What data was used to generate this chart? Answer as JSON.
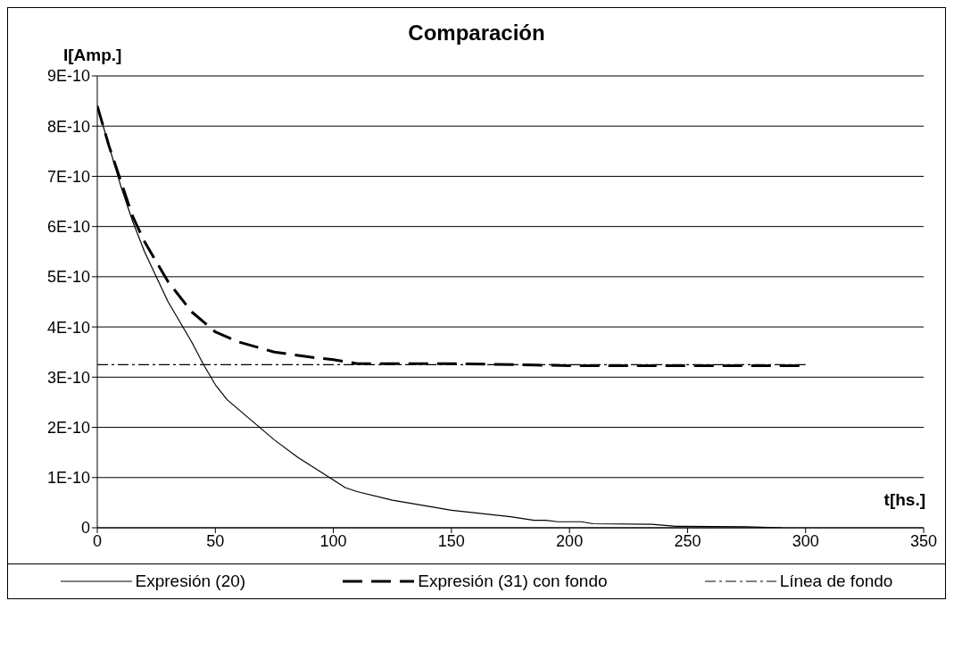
{
  "chart_data": {
    "type": "line",
    "title": "Comparación",
    "xlabel": "t[hs.]",
    "ylabel": "I[Amp.]",
    "xlim": [
      0,
      350
    ],
    "xticks": [
      0,
      50,
      100,
      150,
      200,
      250,
      300,
      350
    ],
    "ylim": [
      0,
      9e-10
    ],
    "yticks": [
      0,
      {
        "value": 1e-10,
        "label": "1E-10"
      },
      {
        "value": 2e-10,
        "label": "2E-10"
      },
      {
        "value": 3e-10,
        "label": "3E-10"
      },
      {
        "value": 4e-10,
        "label": "4E-10"
      },
      {
        "value": 5e-10,
        "label": "5E-10"
      },
      {
        "value": 6e-10,
        "label": "6E-10"
      },
      {
        "value": 7e-10,
        "label": "7E-10"
      },
      {
        "value": 8e-10,
        "label": "8E-10"
      },
      {
        "value": 9e-10,
        "label": "9E-10"
      }
    ],
    "grid": "y",
    "legend": "bottom",
    "marker": "none",
    "series": [
      {
        "name": "Expresión (20)",
        "color": "#000000",
        "line_style": "solid",
        "x": [
          0,
          5,
          10,
          15,
          20,
          25,
          30,
          40,
          45,
          50,
          55,
          60,
          70,
          75,
          85,
          100,
          105,
          110,
          125,
          150,
          175,
          185,
          190,
          195,
          205,
          210,
          235,
          245,
          275,
          290
        ],
        "values": [
          8.4e-10,
          7.6e-10,
          6.8e-10,
          6.1e-10,
          5.5e-10,
          5e-10,
          4.5e-10,
          3.7e-10,
          3.25e-10,
          2.85e-10,
          2.55e-10,
          2.35e-10,
          1.95e-10,
          1.75e-10,
          1.4e-10,
          9.5e-11,
          8e-11,
          7.2e-11,
          5.5e-11,
          3.5e-11,
          2.2e-11,
          1.5e-11,
          1.5e-11,
          1.2e-11,
          1.2e-11,
          8e-12,
          7e-12,
          3e-12,
          2e-12,
          0
        ]
      },
      {
        "name": "Expresión (31) con fondo",
        "color": "#000000",
        "line_style": "dashed",
        "x": [
          0,
          5,
          10,
          15,
          20,
          25,
          30,
          40,
          50,
          55,
          60,
          75,
          90,
          100,
          110,
          125,
          150,
          175,
          200,
          250,
          300
        ],
        "values": [
          8.4e-10,
          7.6e-10,
          6.9e-10,
          6.2e-10,
          5.7e-10,
          5.3e-10,
          4.9e-10,
          4.3e-10,
          3.9e-10,
          3.8e-10,
          3.7e-10,
          3.5e-10,
          3.4e-10,
          3.35e-10,
          3.27e-10,
          3.27e-10,
          3.27e-10,
          3.25e-10,
          3.23e-10,
          3.23e-10,
          3.23e-10
        ]
      },
      {
        "name": "Línea de fondo",
        "color": "#000000",
        "line_style": "dashdot",
        "x": [
          0,
          300
        ],
        "values": [
          3.25e-10,
          3.25e-10
        ]
      }
    ]
  }
}
